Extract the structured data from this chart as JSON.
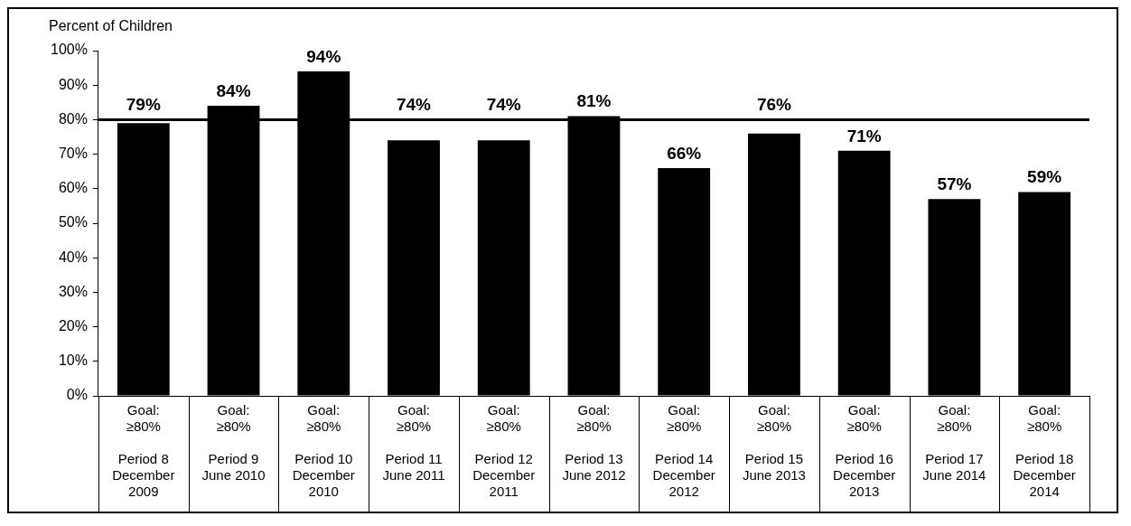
{
  "chart_data": {
    "type": "bar",
    "ylabel": "Percent of Children",
    "categories": [
      "Goal:\n≥80%\n\nPeriod 8\nDecember\n2009",
      "Goal:\n≥80%\n\nPeriod 9\nJune 2010",
      "Goal:\n≥80%\n\nPeriod 10\nDecember\n2010",
      "Goal:\n≥80%\n\nPeriod 11\nJune 2011",
      "Goal:\n≥80%\n\nPeriod 12\nDecember\n2011",
      "Goal:\n≥80%\n\nPeriod 13\nJune 2012",
      "Goal:\n≥80%\n\nPeriod 14\nDecember\n2012",
      "Goal:\n≥80%\n\nPeriod 15\nJune 2013",
      "Goal:\n≥80%\n\nPeriod 16\nDecember\n2013",
      "Goal:\n≥80%\n\nPeriod 17\nJune 2014",
      "Goal:\n≥80%\n\nPeriod 18\nDecember\n2014"
    ],
    "values": [
      79,
      84,
      94,
      74,
      74,
      81,
      66,
      76,
      71,
      57,
      59
    ],
    "color": "#000000",
    "value_labels": [
      "79%",
      "84%",
      "94%",
      "74%",
      "74%",
      "81%",
      "66%",
      "76%",
      "71%",
      "57%",
      "59%"
    ],
    "ylim": [
      0,
      100
    ],
    "yticks": [
      {
        "value": 0,
        "label": "0%"
      },
      {
        "value": 10,
        "label": "10%"
      },
      {
        "value": 20,
        "label": "20%"
      },
      {
        "value": 30,
        "label": "30%"
      },
      {
        "value": 40,
        "label": "40%"
      },
      {
        "value": 50,
        "label": "50%"
      },
      {
        "value": 60,
        "label": "60%"
      },
      {
        "value": 70,
        "label": "70%"
      },
      {
        "value": 80,
        "label": "80%"
      },
      {
        "value": 90,
        "label": "90%"
      },
      {
        "value": 100,
        "label": "100%"
      }
    ],
    "ref_lines": [
      {
        "axis": "y",
        "value": 80,
        "color": "#000000"
      }
    ],
    "grid": false,
    "legend": false
  }
}
